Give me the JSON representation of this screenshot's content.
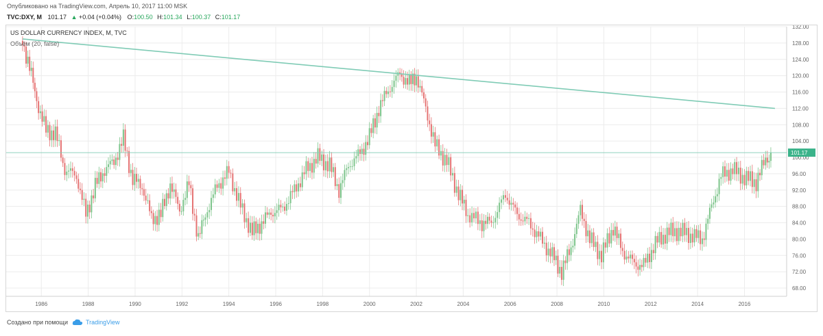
{
  "header": {
    "published": "Опубликовано на TradingView.com, Апрель 10, 2017 11:00 MSK",
    "symbol": "TVC:DXY, M",
    "last": "101.17",
    "change": "+0.04 (+0.04%)",
    "o_label": "O:",
    "o_value": "100.50",
    "h_label": "H:",
    "h_value": "101.34",
    "l_label": "L:",
    "l_value": "100.37",
    "c_label": "C:",
    "c_value": "101.17"
  },
  "footer": {
    "created_with": "Создано при помощи",
    "brand": "TradingView"
  },
  "colors": {
    "up": "#7cc48a",
    "down": "#e57373",
    "trendline": "#7fcbb5",
    "price_line": "#7fcbb5",
    "grid": "#ececec",
    "price_label_bg": "#3bb38a"
  },
  "chart_data": {
    "type": "line",
    "title": "US DOLLAR CURRENCY INDEX, M, TVC",
    "subtitle": "Объём (20, false)",
    "xlabel": "",
    "ylabel": "",
    "x_range": [
      1984.5,
      2017.8
    ],
    "ylim": [
      66,
      132
    ],
    "grid": true,
    "y_ticks": [
      "132.00",
      "128.00",
      "124.00",
      "120.00",
      "116.00",
      "112.00",
      "108.00",
      "104.00",
      "100.00",
      "96.00",
      "92.00",
      "88.00",
      "84.00",
      "80.00",
      "76.00",
      "72.00",
      "68.00"
    ],
    "x_ticks": [
      "1986",
      "1988",
      "1990",
      "1992",
      "1994",
      "1996",
      "1998",
      "2000",
      "2002",
      "2004",
      "2006",
      "2008",
      "2010",
      "2012",
      "2014",
      "2016"
    ],
    "current_price": 101.17,
    "current_price_label": "101.17",
    "trendline": {
      "x1": 1985.2,
      "y1": 129.0,
      "x2": 2017.3,
      "y2": 112.0
    },
    "series": [
      {
        "x": [
          1985.2,
          1985.5,
          1985.8,
          1986.2,
          1986.6,
          1987.0,
          1987.5,
          1987.9,
          1988.3,
          1988.7,
          1989.1,
          1989.5,
          1989.9,
          1990.3,
          1990.7,
          1991.1,
          1991.5,
          1991.9,
          1992.3,
          1992.7,
          1993.0,
          1993.5,
          1994.0,
          1994.5,
          1995.0,
          1995.4,
          1995.8,
          1996.3,
          1996.8,
          1997.3,
          1997.8,
          1998.3,
          1998.7,
          1999.1,
          1999.6,
          2000.0,
          2000.4,
          2000.8,
          2001.3,
          2001.7,
          2002.0,
          2002.4,
          2002.8,
          2003.3,
          2003.8,
          2004.2,
          2004.8,
          2005.2,
          2005.8,
          2006.3,
          2006.8,
          2007.3,
          2007.8,
          2008.2,
          2008.6,
          2009.0,
          2009.4,
          2009.9,
          2010.4,
          2010.8,
          2011.3,
          2011.7,
          2012.2,
          2012.7,
          2013.2,
          2013.7,
          2014.2,
          2014.6,
          2015.0,
          2015.5,
          2016.0,
          2016.5,
          2016.9,
          2017.2
        ],
        "values": [
          128.5,
          122.0,
          114.0,
          106.5,
          106.0,
          97.0,
          95.5,
          86.0,
          93.0,
          97.0,
          99.0,
          104.5,
          94.5,
          93.0,
          85.0,
          86.0,
          93.5,
          87.0,
          93.5,
          80.0,
          86.0,
          93.0,
          96.5,
          88.0,
          81.5,
          84.0,
          86.5,
          87.5,
          92.0,
          97.0,
          100.0,
          98.0,
          92.0,
          98.0,
          101.0,
          105.0,
          112.0,
          116.5,
          120.5,
          118.0,
          120.0,
          112.0,
          103.0,
          99.0,
          91.0,
          86.0,
          84.0,
          84.0,
          91.0,
          86.0,
          84.0,
          80.0,
          76.0,
          72.0,
          78.0,
          87.0,
          80.0,
          76.0,
          83.0,
          77.0,
          74.0,
          73.5,
          79.0,
          81.5,
          82.0,
          81.0,
          80.0,
          88.0,
          95.5,
          97.0,
          95.0,
          94.0,
          99.5,
          101.17
        ]
      }
    ]
  }
}
